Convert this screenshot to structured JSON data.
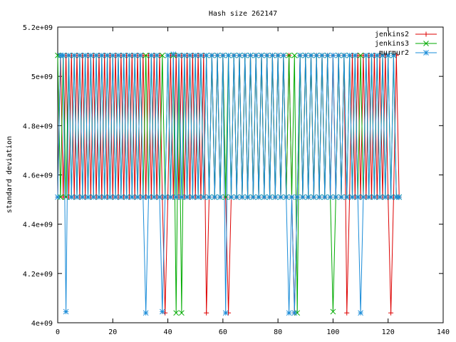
{
  "chart_data": {
    "type": "line",
    "title": "Hash size 262147",
    "xlabel": "",
    "ylabel": "standard deviation",
    "xlim": [
      0,
      140
    ],
    "ylim": [
      4000000000,
      5200000000
    ],
    "x_ticks": [
      0,
      20,
      40,
      60,
      80,
      100,
      120,
      140
    ],
    "x_tick_labels": [
      "0",
      "20",
      "40",
      "60",
      "80",
      "100",
      "120",
      "140"
    ],
    "y_ticks": [
      4000000000,
      4200000000,
      4400000000,
      4600000000,
      4800000000,
      5000000000,
      5200000000
    ],
    "y_tick_labels": [
      "4e+09",
      "4.2e+09",
      "4.4e+09",
      "4.6e+09",
      "4.8e+09",
      "5e+09",
      "5.2e+09"
    ],
    "grid": false,
    "legend_position": "top-right",
    "series": [
      {
        "name": "jenkins2",
        "color": "#dd0000",
        "marker": "plus",
        "levels": [
          4508000000,
          5085000000,
          4040000000
        ],
        "x": [
          0,
          1,
          2,
          3,
          4,
          5,
          6,
          7,
          8,
          9,
          10,
          11,
          12,
          13,
          14,
          15,
          16,
          17,
          18,
          19,
          20,
          21,
          22,
          23,
          24,
          25,
          26,
          27,
          28,
          29,
          30,
          31,
          32,
          33,
          34,
          35,
          36,
          37,
          38,
          39,
          40,
          41,
          42,
          43,
          44,
          45,
          46,
          47,
          48,
          49,
          50,
          51,
          52,
          53,
          54,
          55,
          56,
          57,
          58,
          59,
          60,
          61,
          62,
          63,
          64,
          65,
          66,
          67,
          68,
          69,
          70,
          71,
          72,
          73,
          74,
          75,
          76,
          77,
          78,
          79,
          80,
          81,
          82,
          83,
          84,
          85,
          86,
          87,
          88,
          89,
          90,
          91,
          92,
          93,
          94,
          95,
          96,
          97,
          98,
          99,
          100,
          101,
          102,
          103,
          104,
          105,
          106,
          107,
          108,
          109,
          110,
          111,
          112,
          113,
          114,
          115,
          116,
          117,
          118,
          119,
          120,
          121,
          122,
          123,
          124
        ],
        "y": [
          4510000000,
          5085000000,
          4510000000,
          5085000000,
          4510000000,
          5085000000,
          4510000000,
          5085000000,
          4510000000,
          5085000000,
          4510000000,
          5085000000,
          4510000000,
          5085000000,
          4510000000,
          5085000000,
          4510000000,
          5085000000,
          4510000000,
          5085000000,
          4510000000,
          5085000000,
          4510000000,
          5085000000,
          4510000000,
          5085000000,
          4510000000,
          5085000000,
          4510000000,
          5085000000,
          4510000000,
          5085000000,
          4510000000,
          5085000000,
          4510000000,
          5085000000,
          4510000000,
          5085000000,
          4510000000,
          4040000000,
          4510000000,
          5085000000,
          4510000000,
          5085000000,
          4510000000,
          5085000000,
          4510000000,
          5085000000,
          4510000000,
          5085000000,
          4510000000,
          5085000000,
          4510000000,
          5085000000,
          4040000000,
          4510000000,
          5085000000,
          4510000000,
          5085000000,
          4510000000,
          5085000000,
          4510000000,
          4040000000,
          4510000000,
          5085000000,
          4510000000,
          5085000000,
          4510000000,
          5085000000,
          4510000000,
          5085000000,
          4510000000,
          5085000000,
          4510000000,
          5085000000,
          4510000000,
          5085000000,
          4510000000,
          5085000000,
          4510000000,
          5085000000,
          4510000000,
          5085000000,
          4510000000,
          5085000000,
          4510000000,
          4040000000,
          4510000000,
          5085000000,
          4510000000,
          5085000000,
          4510000000,
          5085000000,
          4510000000,
          5085000000,
          4510000000,
          5085000000,
          4510000000,
          5085000000,
          4510000000,
          5085000000,
          4510000000,
          5085000000,
          4510000000,
          5085000000,
          4040000000,
          4510000000,
          5085000000,
          4510000000,
          5085000000,
          4510000000,
          5085000000,
          4510000000,
          5085000000,
          4510000000,
          5085000000,
          4510000000,
          5085000000,
          4510000000,
          5085000000,
          4510000000,
          4040000000,
          4510000000,
          5085000000,
          4510000000
        ]
      },
      {
        "name": "jenkins3",
        "color": "#00aa00",
        "marker": "cross",
        "x": [
          0,
          1,
          2,
          3,
          4,
          5,
          6,
          7,
          8,
          9,
          10,
          11,
          12,
          13,
          14,
          15,
          16,
          17,
          18,
          19,
          20,
          21,
          22,
          23,
          24,
          25,
          26,
          27,
          28,
          29,
          30,
          31,
          32,
          33,
          34,
          35,
          36,
          37,
          38,
          39,
          40,
          41,
          42,
          43,
          44,
          45,
          46,
          47,
          48,
          49,
          50,
          51,
          52,
          53,
          54,
          55,
          56,
          57,
          58,
          59,
          60,
          61,
          62,
          63,
          64,
          65,
          66,
          67,
          68,
          69,
          70,
          71,
          72,
          73,
          74,
          75,
          76,
          77,
          78,
          79,
          80,
          81,
          82,
          83,
          84,
          85,
          86,
          87,
          88,
          89,
          90,
          91,
          92,
          93,
          94,
          95,
          96,
          97,
          98,
          99,
          100,
          101,
          102,
          103,
          104,
          105,
          106,
          107,
          108,
          109,
          110,
          111,
          112,
          113,
          114,
          115,
          116,
          117,
          118,
          119,
          120,
          121,
          122,
          123,
          124
        ],
        "y": [
          5085000000,
          4510000000,
          5085000000,
          4510000000,
          5085000000,
          4510000000,
          5085000000,
          4510000000,
          5085000000,
          4510000000,
          5085000000,
          4510000000,
          5085000000,
          4510000000,
          5085000000,
          4510000000,
          5085000000,
          4510000000,
          5085000000,
          4510000000,
          5085000000,
          4510000000,
          5085000000,
          4510000000,
          5085000000,
          4510000000,
          5085000000,
          4510000000,
          5085000000,
          4510000000,
          5085000000,
          4510000000,
          5085000000,
          4510000000,
          5085000000,
          4510000000,
          5085000000,
          4510000000,
          5085000000,
          4510000000,
          5085000000,
          4510000000,
          5085000000,
          4040000000,
          5085000000,
          4040000000,
          5085000000,
          4510000000,
          5085000000,
          4510000000,
          5085000000,
          4510000000,
          5085000000,
          4510000000,
          5085000000,
          4510000000,
          5085000000,
          4510000000,
          5085000000,
          4510000000,
          5085000000,
          4510000000,
          5085000000,
          4510000000,
          5085000000,
          4510000000,
          5085000000,
          4510000000,
          5085000000,
          4510000000,
          5085000000,
          4510000000,
          5085000000,
          4510000000,
          5085000000,
          4510000000,
          5085000000,
          4510000000,
          5085000000,
          4510000000,
          5085000000,
          4510000000,
          5085000000,
          4510000000,
          5085000000,
          4510000000,
          5085000000,
          4040000000,
          5085000000,
          4510000000,
          5085000000,
          4510000000,
          5085000000,
          4510000000,
          5085000000,
          4510000000,
          5085000000,
          4510000000,
          5085000000,
          4510000000,
          4045000000,
          4510000000,
          5085000000,
          4510000000,
          5085000000,
          4510000000,
          5085000000,
          4510000000,
          5085000000,
          4510000000,
          5085000000,
          4510000000,
          5085000000,
          4510000000,
          5085000000,
          4510000000,
          5085000000,
          4510000000,
          5085000000,
          4510000000,
          5085000000,
          4510000000,
          5085000000,
          4510000000,
          4510000000
        ]
      },
      {
        "name": "murmur2",
        "color": "#1a8cd8",
        "marker": "star",
        "x": [
          0,
          1,
          2,
          3,
          4,
          5,
          6,
          7,
          8,
          9,
          10,
          11,
          12,
          13,
          14,
          15,
          16,
          17,
          18,
          19,
          20,
          21,
          22,
          23,
          24,
          25,
          26,
          27,
          28,
          29,
          30,
          31,
          32,
          33,
          34,
          35,
          36,
          37,
          38,
          39,
          40,
          41,
          42,
          43,
          44,
          45,
          46,
          47,
          48,
          49,
          50,
          51,
          52,
          53,
          54,
          55,
          56,
          57,
          58,
          59,
          60,
          61,
          62,
          63,
          64,
          65,
          66,
          67,
          68,
          69,
          70,
          71,
          72,
          73,
          74,
          75,
          76,
          77,
          78,
          79,
          80,
          81,
          82,
          83,
          84,
          85,
          86,
          87,
          88,
          89,
          90,
          91,
          92,
          93,
          94,
          95,
          96,
          97,
          98,
          99,
          100,
          101,
          102,
          103,
          104,
          105,
          106,
          107,
          108,
          109,
          110,
          111,
          112,
          113,
          114,
          115,
          116,
          117,
          118,
          119,
          120,
          121,
          122,
          123,
          124
        ],
        "y": [
          4510000000,
          5085000000,
          5085000000,
          4045000000,
          5085000000,
          4510000000,
          5085000000,
          4510000000,
          5085000000,
          4510000000,
          5085000000,
          4510000000,
          5085000000,
          4510000000,
          5085000000,
          4510000000,
          5085000000,
          4510000000,
          5085000000,
          4510000000,
          5085000000,
          4510000000,
          5085000000,
          4510000000,
          5085000000,
          4510000000,
          5085000000,
          4510000000,
          5085000000,
          4510000000,
          5085000000,
          4510000000,
          4040000000,
          4510000000,
          5085000000,
          4510000000,
          5085000000,
          4510000000,
          4045000000,
          4510000000,
          5085000000,
          4510000000,
          5090000000,
          4510000000,
          5085000000,
          4510000000,
          5085000000,
          4510000000,
          5085000000,
          4510000000,
          5085000000,
          4510000000,
          5085000000,
          4510000000,
          5085000000,
          4510000000,
          5085000000,
          4510000000,
          5085000000,
          4510000000,
          5085000000,
          4040000000,
          5085000000,
          4510000000,
          5085000000,
          4510000000,
          5085000000,
          4510000000,
          5085000000,
          4510000000,
          5085000000,
          4510000000,
          5085000000,
          4510000000,
          5085000000,
          4510000000,
          5085000000,
          4510000000,
          5085000000,
          4510000000,
          5085000000,
          4510000000,
          5085000000,
          4510000000,
          4040000000,
          4510000000,
          4040000000,
          4510000000,
          5085000000,
          4510000000,
          5085000000,
          4510000000,
          5085000000,
          4510000000,
          5085000000,
          4510000000,
          5085000000,
          4510000000,
          5085000000,
          4510000000,
          5085000000,
          4510000000,
          5085000000,
          4510000000,
          5085000000,
          4510000000,
          5085000000,
          4510000000,
          5085000000,
          4510000000,
          4040000000,
          4510000000,
          5085000000,
          4510000000,
          5085000000,
          4510000000,
          5085000000,
          4510000000,
          5085000000,
          4510000000,
          5085000000,
          4510000000,
          5085000000,
          4510000000,
          4510000000
        ]
      }
    ]
  }
}
